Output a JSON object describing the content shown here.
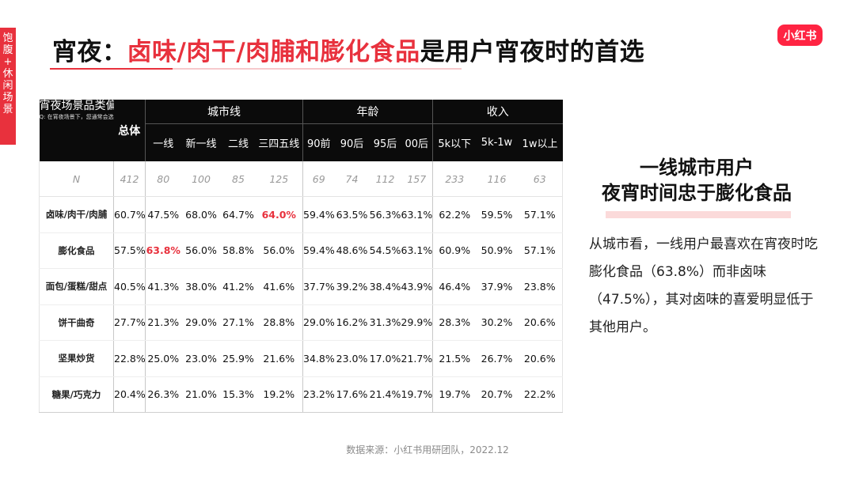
{
  "side_tab": [
    "饱",
    "腹",
    "+",
    "休",
    "闲",
    "场",
    "景"
  ],
  "title": {
    "prefix": "宵夜：",
    "highlight": "卤味/肉干/肉脯和膨化食品",
    "suffix": "是用户宵夜时的首选"
  },
  "logo": "小红书",
  "table": {
    "corner_title": "宵夜场景品类偏好",
    "corner_question": "Q: 在宵夜场景下，您通常会选择吃什么样的零食？",
    "total_label": "总体",
    "groups": [
      "城市线",
      "年龄",
      "收入"
    ],
    "columns": [
      "一线",
      "新一线",
      "二线",
      "三四五线",
      "90前",
      "90后",
      "95后",
      "00后",
      "5k以下",
      "5k-1w",
      "1w以上"
    ],
    "n_row": {
      "label": "N",
      "values": [
        "412",
        "80",
        "100",
        "85",
        "125",
        "69",
        "74",
        "112",
        "157",
        "233",
        "116",
        "63"
      ]
    },
    "rows": [
      {
        "label": "卤味/肉干/肉脯",
        "values": [
          "60.7%",
          "47.5%",
          "68.0%",
          "64.7%",
          "64.0%",
          "59.4%",
          "63.5%",
          "56.3%",
          "63.1%",
          "62.2%",
          "59.5%",
          "57.1%"
        ]
      },
      {
        "label": "膨化食品",
        "values": [
          "57.5%",
          "63.8%",
          "56.0%",
          "58.8%",
          "56.0%",
          "59.4%",
          "48.6%",
          "54.5%",
          "63.1%",
          "60.9%",
          "50.9%",
          "57.1%"
        ]
      },
      {
        "label": "面包/蛋糕/甜点",
        "values": [
          "40.5%",
          "41.3%",
          "38.0%",
          "41.2%",
          "41.6%",
          "37.7%",
          "39.2%",
          "38.4%",
          "43.9%",
          "46.4%",
          "37.9%",
          "23.8%"
        ]
      },
      {
        "label": "饼干曲奇",
        "values": [
          "27.7%",
          "21.3%",
          "29.0%",
          "27.1%",
          "28.8%",
          "29.0%",
          "16.2%",
          "31.3%",
          "29.9%",
          "28.3%",
          "30.2%",
          "20.6%"
        ]
      },
      {
        "label": "坚果炒货",
        "values": [
          "22.8%",
          "25.0%",
          "23.0%",
          "25.9%",
          "21.6%",
          "34.8%",
          "23.0%",
          "17.0%",
          "21.7%",
          "21.5%",
          "26.7%",
          "20.6%"
        ]
      },
      {
        "label": "糖果/巧克力",
        "values": [
          "20.4%",
          "26.3%",
          "21.0%",
          "15.3%",
          "19.2%",
          "23.2%",
          "17.6%",
          "21.4%",
          "19.7%",
          "19.7%",
          "20.7%",
          "22.2%"
        ]
      }
    ],
    "highlighted_cells": [
      {
        "row": 0,
        "col": 4
      },
      {
        "row": 1,
        "col": 1
      }
    ],
    "highlight_color": "#e8313d"
  },
  "insight": {
    "title_line1": "一线城市用户",
    "title_line2": "夜宵时间忠于膨化食品",
    "body": "从城市看，一线用户最喜欢在宵夜时吃膨化食品（63.8%）而非卤味（47.5%），其对卤味的喜爱明显低于其他用户。"
  },
  "source": "数据来源：小红书用研团队，2022.12",
  "colors": {
    "accent": "#e8313d",
    "header_bg": "#0b0b0b",
    "logo_bg": "#ff2442"
  }
}
